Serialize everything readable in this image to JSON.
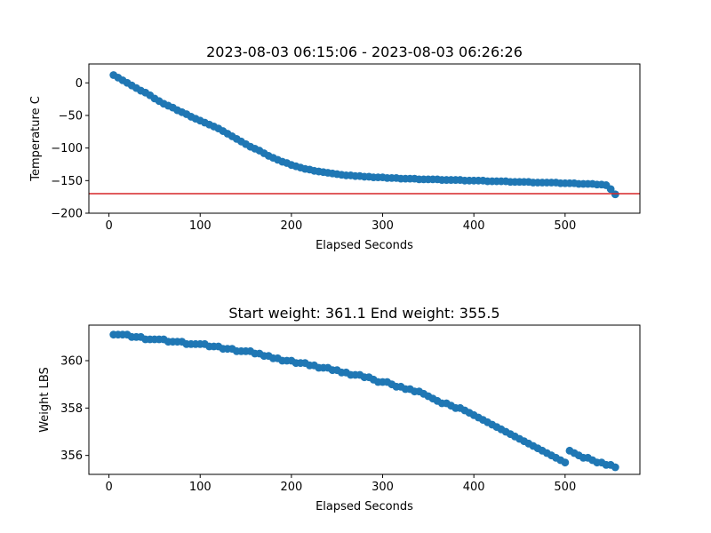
{
  "chart_data": [
    {
      "type": "scatter",
      "title": "2023-08-03 06:15:06 - 2023-08-03 06:26:26",
      "xlabel": "Elapsed Seconds",
      "ylabel": "Temperature C",
      "xlim": [
        -22,
        582
      ],
      "ylim": [
        -200,
        29
      ],
      "xticks": [
        0,
        100,
        200,
        300,
        400,
        500
      ],
      "yticks": [
        -200,
        -150,
        -100,
        -50,
        0
      ],
      "grid": false,
      "marker_color": "#1f77b4",
      "reference_line": {
        "y": -170,
        "color": "#d62728"
      },
      "points": [
        [
          5,
          12
        ],
        [
          10,
          8
        ],
        [
          15,
          4
        ],
        [
          20,
          0
        ],
        [
          25,
          -4
        ],
        [
          30,
          -8
        ],
        [
          35,
          -12
        ],
        [
          40,
          -15
        ],
        [
          45,
          -19
        ],
        [
          50,
          -24
        ],
        [
          55,
          -28
        ],
        [
          60,
          -32
        ],
        [
          65,
          -35
        ],
        [
          70,
          -38
        ],
        [
          75,
          -42
        ],
        [
          80,
          -45
        ],
        [
          85,
          -48
        ],
        [
          90,
          -52
        ],
        [
          95,
          -55
        ],
        [
          100,
          -58
        ],
        [
          105,
          -61
        ],
        [
          110,
          -64
        ],
        [
          115,
          -67
        ],
        [
          120,
          -70
        ],
        [
          125,
          -74
        ],
        [
          130,
          -78
        ],
        [
          135,
          -82
        ],
        [
          140,
          -86
        ],
        [
          145,
          -90
        ],
        [
          150,
          -94
        ],
        [
          155,
          -98
        ],
        [
          160,
          -101
        ],
        [
          165,
          -104
        ],
        [
          170,
          -108
        ],
        [
          175,
          -112
        ],
        [
          180,
          -115
        ],
        [
          185,
          -118
        ],
        [
          190,
          -121
        ],
        [
          195,
          -123
        ],
        [
          200,
          -126
        ],
        [
          205,
          -128
        ],
        [
          210,
          -130
        ],
        [
          215,
          -132
        ],
        [
          220,
          -133
        ],
        [
          225,
          -135
        ],
        [
          230,
          -136
        ],
        [
          235,
          -137
        ],
        [
          240,
          -138
        ],
        [
          245,
          -139
        ],
        [
          250,
          -140
        ],
        [
          255,
          -141
        ],
        [
          260,
          -142
        ],
        [
          265,
          -142
        ],
        [
          270,
          -143
        ],
        [
          275,
          -143
        ],
        [
          280,
          -144
        ],
        [
          285,
          -144
        ],
        [
          290,
          -145
        ],
        [
          295,
          -145
        ],
        [
          300,
          -145
        ],
        [
          305,
          -146
        ],
        [
          310,
          -146
        ],
        [
          315,
          -146
        ],
        [
          320,
          -147
        ],
        [
          325,
          -147
        ],
        [
          330,
          -147
        ],
        [
          335,
          -147
        ],
        [
          340,
          -148
        ],
        [
          345,
          -148
        ],
        [
          350,
          -148
        ],
        [
          355,
          -148
        ],
        [
          360,
          -148
        ],
        [
          365,
          -149
        ],
        [
          370,
          -149
        ],
        [
          375,
          -149
        ],
        [
          380,
          -149
        ],
        [
          385,
          -149
        ],
        [
          390,
          -150
        ],
        [
          395,
          -150
        ],
        [
          400,
          -150
        ],
        [
          405,
          -150
        ],
        [
          410,
          -150
        ],
        [
          415,
          -151
        ],
        [
          420,
          -151
        ],
        [
          425,
          -151
        ],
        [
          430,
          -151
        ],
        [
          435,
          -151
        ],
        [
          440,
          -152
        ],
        [
          445,
          -152
        ],
        [
          450,
          -152
        ],
        [
          455,
          -152
        ],
        [
          460,
          -152
        ],
        [
          465,
          -153
        ],
        [
          470,
          -153
        ],
        [
          475,
          -153
        ],
        [
          480,
          -153
        ],
        [
          485,
          -153
        ],
        [
          490,
          -153
        ],
        [
          495,
          -154
        ],
        [
          500,
          -154
        ],
        [
          505,
          -154
        ],
        [
          510,
          -154
        ],
        [
          515,
          -155
        ],
        [
          520,
          -155
        ],
        [
          525,
          -155
        ],
        [
          530,
          -155
        ],
        [
          535,
          -156
        ],
        [
          540,
          -156
        ],
        [
          545,
          -157
        ],
        [
          550,
          -163
        ],
        [
          555,
          -171
        ]
      ]
    },
    {
      "type": "scatter",
      "title": "Start weight: 361.1 End weight: 355.5",
      "xlabel": "Elapsed Seconds",
      "ylabel": "Weight LBS",
      "xlim": [
        -22,
        582
      ],
      "ylim": [
        355.2,
        361.5
      ],
      "xticks": [
        0,
        100,
        200,
        300,
        400,
        500
      ],
      "yticks": [
        356,
        358,
        360
      ],
      "grid": false,
      "marker_color": "#1f77b4",
      "points": [
        [
          5,
          361.1
        ],
        [
          10,
          361.1
        ],
        [
          15,
          361.1
        ],
        [
          20,
          361.1
        ],
        [
          25,
          361.0
        ],
        [
          30,
          361.0
        ],
        [
          35,
          361.0
        ],
        [
          40,
          360.9
        ],
        [
          45,
          360.9
        ],
        [
          50,
          360.9
        ],
        [
          55,
          360.9
        ],
        [
          60,
          360.9
        ],
        [
          65,
          360.8
        ],
        [
          70,
          360.8
        ],
        [
          75,
          360.8
        ],
        [
          80,
          360.8
        ],
        [
          85,
          360.7
        ],
        [
          90,
          360.7
        ],
        [
          95,
          360.7
        ],
        [
          100,
          360.7
        ],
        [
          105,
          360.7
        ],
        [
          110,
          360.6
        ],
        [
          115,
          360.6
        ],
        [
          120,
          360.6
        ],
        [
          125,
          360.5
        ],
        [
          130,
          360.5
        ],
        [
          135,
          360.5
        ],
        [
          140,
          360.4
        ],
        [
          145,
          360.4
        ],
        [
          150,
          360.4
        ],
        [
          155,
          360.4
        ],
        [
          160,
          360.3
        ],
        [
          165,
          360.3
        ],
        [
          170,
          360.2
        ],
        [
          175,
          360.2
        ],
        [
          180,
          360.1
        ],
        [
          185,
          360.1
        ],
        [
          190,
          360.0
        ],
        [
          195,
          360.0
        ],
        [
          200,
          360.0
        ],
        [
          205,
          359.9
        ],
        [
          210,
          359.9
        ],
        [
          215,
          359.9
        ],
        [
          220,
          359.8
        ],
        [
          225,
          359.8
        ],
        [
          230,
          359.7
        ],
        [
          235,
          359.7
        ],
        [
          240,
          359.7
        ],
        [
          245,
          359.6
        ],
        [
          250,
          359.6
        ],
        [
          255,
          359.5
        ],
        [
          260,
          359.5
        ],
        [
          265,
          359.4
        ],
        [
          270,
          359.4
        ],
        [
          275,
          359.4
        ],
        [
          280,
          359.3
        ],
        [
          285,
          359.3
        ],
        [
          290,
          359.2
        ],
        [
          295,
          359.1
        ],
        [
          300,
          359.1
        ],
        [
          305,
          359.1
        ],
        [
          310,
          359.0
        ],
        [
          315,
          358.9
        ],
        [
          320,
          358.9
        ],
        [
          325,
          358.8
        ],
        [
          330,
          358.8
        ],
        [
          335,
          358.7
        ],
        [
          340,
          358.7
        ],
        [
          345,
          358.6
        ],
        [
          350,
          358.5
        ],
        [
          355,
          358.4
        ],
        [
          360,
          358.3
        ],
        [
          365,
          358.2
        ],
        [
          370,
          358.2
        ],
        [
          375,
          358.1
        ],
        [
          380,
          358.0
        ],
        [
          385,
          358.0
        ],
        [
          390,
          357.9
        ],
        [
          395,
          357.8
        ],
        [
          400,
          357.7
        ],
        [
          405,
          357.6
        ],
        [
          410,
          357.5
        ],
        [
          415,
          357.4
        ],
        [
          420,
          357.3
        ],
        [
          425,
          357.2
        ],
        [
          430,
          357.1
        ],
        [
          435,
          357.0
        ],
        [
          440,
          356.9
        ],
        [
          445,
          356.8
        ],
        [
          450,
          356.7
        ],
        [
          455,
          356.6
        ],
        [
          460,
          356.5
        ],
        [
          465,
          356.4
        ],
        [
          470,
          356.3
        ],
        [
          475,
          356.2
        ],
        [
          480,
          356.1
        ],
        [
          485,
          356.0
        ],
        [
          490,
          355.9
        ],
        [
          495,
          355.8
        ],
        [
          500,
          355.7
        ],
        [
          505,
          356.2
        ],
        [
          510,
          356.1
        ],
        [
          515,
          356.0
        ],
        [
          520,
          355.9
        ],
        [
          525,
          355.9
        ],
        [
          530,
          355.8
        ],
        [
          535,
          355.7
        ],
        [
          540,
          355.7
        ],
        [
          545,
          355.6
        ],
        [
          550,
          355.6
        ],
        [
          555,
          355.5
        ]
      ]
    }
  ]
}
